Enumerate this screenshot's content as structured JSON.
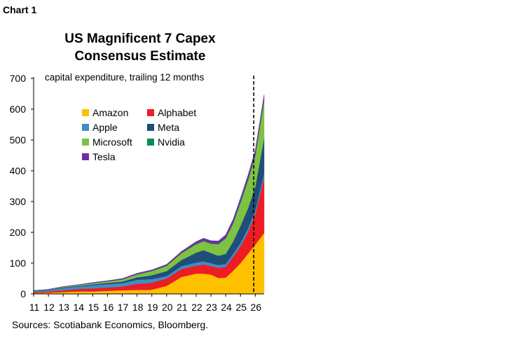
{
  "chart_label": "Chart 1",
  "chart_data": {
    "type": "area",
    "stacked": true,
    "title_line1": "US Magnificent 7 Capex",
    "title_line2": "Consensus Estimate",
    "subtitle": "capital expenditure, trailing 12 months",
    "xlabel": "",
    "ylabel": "",
    "ylim": [
      0,
      700
    ],
    "yticks": [
      0,
      100,
      200,
      300,
      400,
      500,
      600,
      700
    ],
    "xlim": [
      2011,
      2026.6
    ],
    "xtick_labels": [
      "11",
      "12",
      "13",
      "14",
      "15",
      "16",
      "17",
      "18",
      "19",
      "20",
      "21",
      "22",
      "23",
      "24",
      "25",
      "26"
    ],
    "forecast_divider_x": 2025.9,
    "legend_position": "upper-left",
    "x": [
      2011,
      2012,
      2013,
      2014,
      2015,
      2016,
      2017,
      2018,
      2018.8,
      2019,
      2020,
      2021,
      2022,
      2022.5,
      2023,
      2023.5,
      2024,
      2024.5,
      2025,
      2025.5,
      2026,
      2026.6
    ],
    "series": [
      {
        "name": "Amazon",
        "color": "#FFC000",
        "values": [
          3,
          4,
          6,
          8,
          8,
          10,
          12,
          13,
          13,
          14,
          26,
          55,
          66,
          66,
          63,
          52,
          53,
          75,
          100,
          130,
          160,
          198
        ]
      },
      {
        "name": "Alphabet",
        "color": "#EE1C25",
        "values": [
          3,
          4,
          6,
          8,
          10,
          11,
          12,
          20,
          22,
          23,
          24,
          26,
          26,
          30,
          28,
          33,
          35,
          45,
          55,
          70,
          100,
          180
        ]
      },
      {
        "name": "Apple",
        "color": "#3D8FC6",
        "values": [
          3,
          4,
          7,
          8,
          10,
          11,
          11,
          13,
          13,
          11,
          8,
          9,
          10,
          10,
          9,
          9,
          9,
          10,
          11,
          12,
          13,
          14
        ]
      },
      {
        "name": "Meta",
        "color": "#1F4E79",
        "values": [
          1,
          1,
          2,
          2,
          3,
          4,
          5,
          8,
          11,
          13,
          16,
          20,
          32,
          36,
          33,
          30,
          33,
          40,
          55,
          65,
          75,
          115
        ]
      },
      {
        "name": "Microsoft",
        "color": "#7DC243",
        "values": [
          1,
          1,
          2,
          3,
          4,
          5,
          7,
          9,
          13,
          13,
          17,
          22,
          27,
          29,
          30,
          37,
          50,
          58,
          75,
          90,
          100,
          120
        ]
      },
      {
        "name": "Nvidia",
        "color": "#0A8A5A",
        "values": [
          0,
          0,
          0,
          0,
          0,
          0,
          0,
          1,
          1,
          1,
          1,
          1,
          2,
          2,
          2,
          2,
          2,
          3,
          4,
          5,
          6,
          8
        ]
      },
      {
        "name": "Tesla",
        "color": "#7030A0",
        "values": [
          0,
          1,
          1,
          1,
          2,
          2,
          3,
          3,
          3,
          3,
          4,
          5,
          7,
          8,
          8,
          9,
          10,
          11,
          11,
          12,
          12,
          12
        ]
      }
    ]
  },
  "source_text": "Sources: Scotiabank Economics, Bloomberg."
}
